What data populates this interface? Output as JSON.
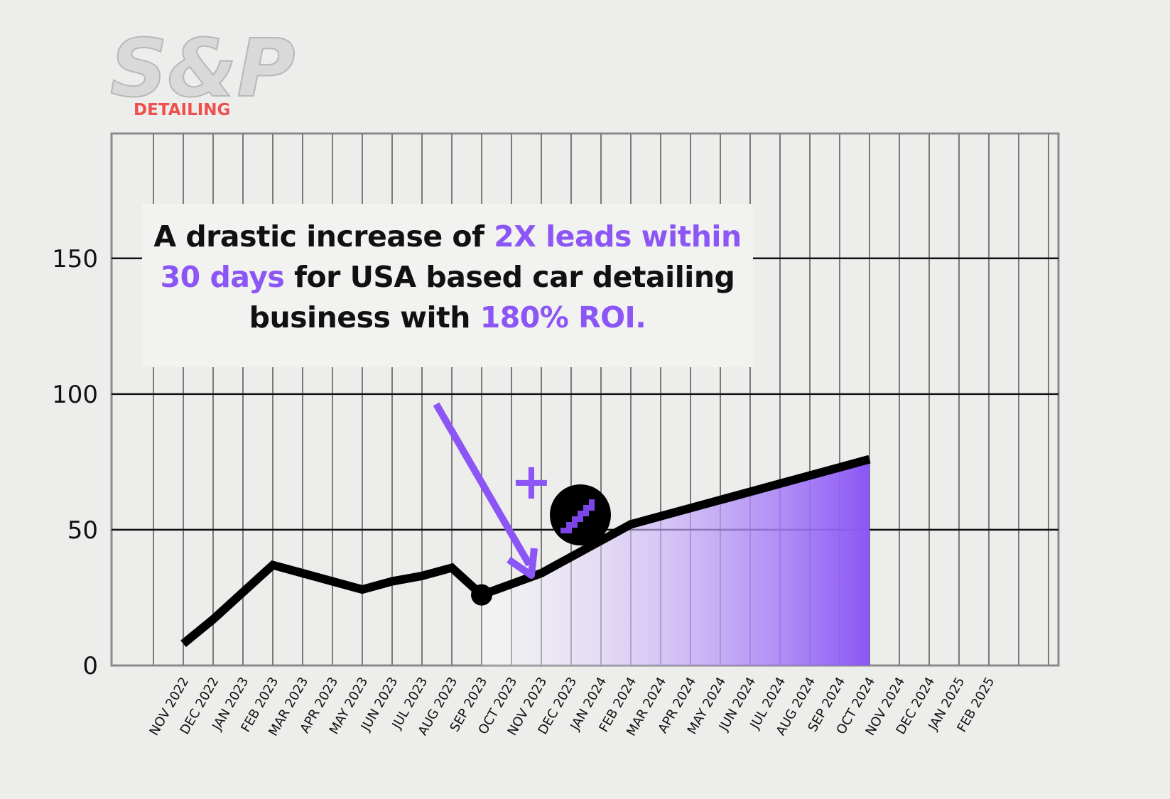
{
  "logo": {
    "brand": "S&P",
    "sub": "DETAILING"
  },
  "headline": {
    "p1": "A drastic increase of ",
    "h1": "2X leads within 30 days",
    "p2": " for USA based car detailing business with ",
    "h2": "180% ROI."
  },
  "colors": {
    "accent": "#8b56f5",
    "line": "#000000",
    "logo_red": "#ef4f4f",
    "background": "#ededeb"
  },
  "badge": {
    "plus": "+",
    "icon": "pixel-arrow-icon"
  },
  "chart_data": {
    "type": "area",
    "x": [
      "NOV 2022",
      "DEC 2022",
      "JAN 2023",
      "FEB 2023",
      "MAR 2023",
      "APR 2023",
      "MAY 2023",
      "JUN 2023",
      "JUL 2023",
      "AUG 2023",
      "SEP 2023",
      "OCT 2023",
      "NOV 2023",
      "DEC 2023",
      "JAN 2024",
      "FEB 2024",
      "MAR 2024",
      "APR 2024",
      "MAY 2024",
      "JUN 2024",
      "JUL 2024",
      "AUG 2024",
      "SEP 2024",
      "OCT 2024",
      "NOV 2024",
      "DEC 2024",
      "JAN 2025",
      "FEB 2025"
    ],
    "series": [
      {
        "values": [
          8,
          17,
          27,
          37,
          34,
          31,
          28,
          31,
          33,
          36,
          26,
          30,
          34,
          40,
          46,
          52,
          55,
          58,
          61,
          64,
          67,
          70,
          73,
          76,
          null,
          null,
          null,
          null
        ]
      }
    ],
    "highlight_index": 10,
    "fill_from_index": 10,
    "fill_to_index": 23,
    "yticks": [
      0,
      50,
      100,
      150
    ],
    "ylim": [
      0,
      196
    ],
    "grid": true
  }
}
